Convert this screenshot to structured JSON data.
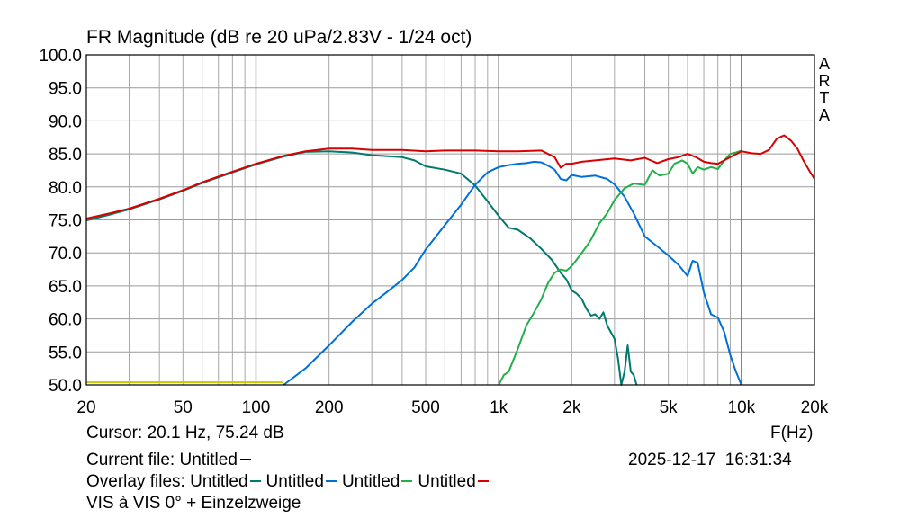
{
  "chart_data": {
    "type": "line",
    "title": "FR Magnitude (dB re 20 uPa/2.83V - 1/24 oct)",
    "xlabel": "F(Hz)",
    "ylabel": "",
    "x_scale": "log",
    "xlim": [
      20,
      20000
    ],
    "ylim": [
      50,
      100
    ],
    "grid": true,
    "x_ticks": [
      20,
      50,
      100,
      200,
      500,
      1000,
      2000,
      5000,
      10000,
      20000
    ],
    "x_tick_labels": [
      "20",
      "50",
      "100",
      "200",
      "500",
      "1k",
      "2k",
      "5k",
      "10k",
      "20k"
    ],
    "y_ticks": [
      50,
      55,
      60,
      65,
      70,
      75,
      80,
      85,
      90,
      95,
      100
    ],
    "y_tick_labels": [
      "50.0",
      "55.0",
      "60.0",
      "65.0",
      "70.0",
      "75.0",
      "80.0",
      "85.0",
      "90.0",
      "95.0",
      "100.0"
    ],
    "watermark": "ARTA",
    "series": [
      {
        "color": "#c8c800",
        "x": [
          20,
          25,
          40,
          60,
          100,
          130
        ],
        "y": [
          50.4,
          50.4,
          50.4,
          50.4,
          50.4,
          50.4
        ]
      },
      {
        "color": "#007a6e",
        "x": [
          20,
          25,
          30,
          40,
          50,
          60,
          80,
          100,
          130,
          160,
          200,
          250,
          300,
          400,
          450,
          500,
          600,
          700,
          800,
          900,
          1000,
          1100,
          1200,
          1350,
          1500,
          1650,
          1800,
          1900,
          2000,
          2100,
          2200,
          2300,
          2400,
          2500,
          2600,
          2700,
          2800,
          3000,
          3100,
          3200,
          3300,
          3400,
          3500,
          3600,
          3700
        ],
        "y": [
          74.9,
          75.8,
          76.6,
          78.1,
          79.4,
          80.6,
          82.2,
          83.4,
          84.6,
          85.3,
          85.4,
          85.2,
          84.8,
          84.5,
          84.0,
          83.1,
          82.6,
          82.0,
          80.2,
          77.8,
          75.6,
          73.8,
          73.5,
          72.2,
          70.6,
          69.0,
          67.0,
          66.0,
          64.3,
          63.8,
          63.0,
          61.5,
          60.5,
          60.7,
          60.0,
          61.0,
          59.0,
          57.0,
          54.0,
          50.0,
          52.0,
          56.0,
          52.0,
          51.5,
          50.0
        ]
      },
      {
        "color": "#0070d8",
        "x": [
          130,
          160,
          200,
          250,
          300,
          350,
          400,
          450,
          500,
          600,
          700,
          800,
          900,
          1000,
          1100,
          1200,
          1300,
          1400,
          1500,
          1600,
          1700,
          1800,
          1900,
          2000,
          2200,
          2500,
          2800,
          3000,
          3300,
          3600,
          4000,
          4500,
          5000,
          5500,
          6000,
          6300,
          6600,
          7000,
          7500,
          8000,
          8500,
          9000,
          9500,
          10000
        ],
        "y": [
          50.0,
          52.5,
          56.0,
          59.6,
          62.3,
          64.2,
          65.9,
          67.8,
          70.5,
          74.2,
          77.3,
          80.3,
          82.2,
          83.0,
          83.3,
          83.5,
          83.6,
          83.8,
          83.7,
          83.2,
          82.6,
          81.2,
          81.0,
          81.8,
          81.5,
          81.7,
          81.2,
          80.4,
          78.5,
          76.0,
          72.5,
          71.0,
          69.6,
          68.2,
          66.5,
          68.8,
          68.5,
          64.0,
          60.7,
          60.2,
          58.0,
          54.5,
          52.0,
          50.0
        ]
      },
      {
        "color": "#21b04b",
        "x": [
          1000,
          1050,
          1100,
          1200,
          1300,
          1400,
          1500,
          1600,
          1700,
          1800,
          1900,
          2000,
          2100,
          2200,
          2300,
          2400,
          2600,
          2800,
          3000,
          3300,
          3600,
          4000,
          4300,
          4600,
          5000,
          5300,
          5700,
          6000,
          6300,
          6600,
          7000,
          7500,
          8000,
          8500,
          9000,
          9500,
          10000
        ],
        "y": [
          50.0,
          51.5,
          52.0,
          55.5,
          59.0,
          61.0,
          63.0,
          65.5,
          67.0,
          67.5,
          67.3,
          68.0,
          69.0,
          70.0,
          71.0,
          72.0,
          74.5,
          76.0,
          78.0,
          79.8,
          80.5,
          80.3,
          82.5,
          81.7,
          82.0,
          83.5,
          84.0,
          83.5,
          82.0,
          83.0,
          82.6,
          83.0,
          82.7,
          84.0,
          85.0,
          85.2,
          85.5
        ]
      },
      {
        "color": "#d80000",
        "x": [
          20,
          25,
          30,
          40,
          50,
          60,
          80,
          100,
          130,
          160,
          200,
          250,
          300,
          400,
          500,
          600,
          800,
          1000,
          1200,
          1500,
          1700,
          1800,
          1900,
          2000,
          2200,
          2500,
          3000,
          3500,
          4000,
          4500,
          5000,
          5500,
          6000,
          6500,
          7000,
          7500,
          8000,
          9000,
          10000,
          11000,
          12000,
          13000,
          14000,
          15000,
          16000,
          17000,
          18000,
          19000,
          20000
        ],
        "y": [
          75.2,
          76.0,
          76.7,
          78.2,
          79.5,
          80.7,
          82.3,
          83.5,
          84.7,
          85.4,
          85.8,
          85.8,
          85.6,
          85.6,
          85.4,
          85.5,
          85.5,
          85.4,
          85.4,
          85.5,
          84.5,
          82.9,
          83.5,
          83.5,
          83.8,
          84.0,
          84.3,
          84.0,
          84.4,
          83.6,
          84.2,
          84.5,
          85.0,
          84.5,
          83.8,
          83.6,
          83.5,
          84.5,
          85.4,
          85.1,
          85.0,
          85.6,
          87.3,
          87.8,
          87.0,
          85.8,
          84.0,
          82.5,
          81.2
        ]
      }
    ]
  },
  "status": {
    "cursor": "Cursor: 20.1 Hz, 75.24 dB",
    "current_file": "Current file: Untitled",
    "overlay_prefix": "Overlay files:",
    "overlay_files": [
      {
        "label": "Untitled",
        "color": "#007a6e"
      },
      {
        "label": "Untitled",
        "color": "#0070d8"
      },
      {
        "label": "Untitled",
        "color": "#21b04b"
      },
      {
        "label": "Untitled",
        "color": "#d80000"
      }
    ],
    "note": "VIS à VIS 0° + Einzelzweige",
    "date": "2025-12-17",
    "time": "16:31:34"
  }
}
